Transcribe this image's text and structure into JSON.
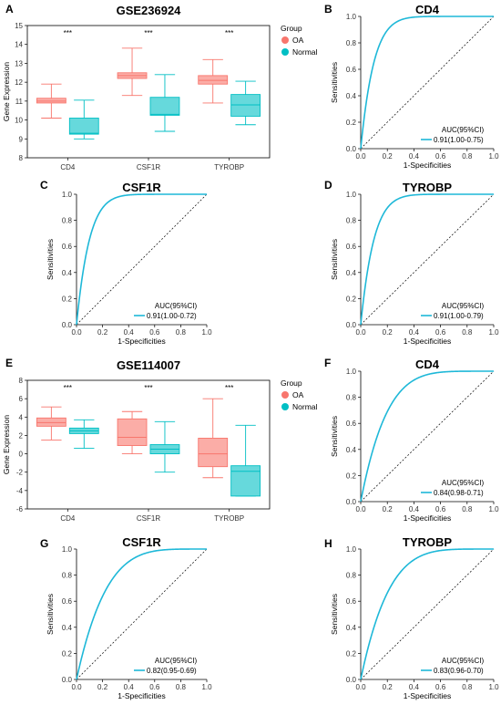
{
  "chart_data": [
    {
      "panel": "A",
      "type": "box",
      "title": "GSE236924",
      "ylabel": "Gene Expression",
      "ylim": [
        8,
        15
      ],
      "yticks": [
        8,
        9,
        10,
        11,
        12,
        13,
        14,
        15
      ],
      "categories": [
        "CD4",
        "CSF1R",
        "TYROBP"
      ],
      "significance": [
        "***",
        "***",
        "***"
      ],
      "legend": {
        "title": "Group",
        "entries": [
          "OA",
          "Normal"
        ],
        "placement": "right"
      },
      "series": [
        {
          "name": "OA",
          "color": "#F8766D",
          "boxes": [
            {
              "min": 10.1,
              "q1": 10.9,
              "median": 11.0,
              "q3": 11.15,
              "max": 11.9
            },
            {
              "min": 11.3,
              "q1": 12.2,
              "median": 12.35,
              "q3": 12.5,
              "max": 13.8
            },
            {
              "min": 10.9,
              "q1": 11.9,
              "median": 12.1,
              "q3": 12.35,
              "max": 13.2
            }
          ]
        },
        {
          "name": "Normal",
          "color": "#00BFC4",
          "boxes": [
            {
              "min": 9.0,
              "q1": 9.25,
              "median": 9.3,
              "q3": 10.1,
              "max": 11.05
            },
            {
              "min": 9.4,
              "q1": 10.25,
              "median": 10.3,
              "q3": 11.2,
              "max": 12.4
            },
            {
              "min": 9.75,
              "q1": 10.2,
              "median": 10.8,
              "q3": 11.35,
              "max": 12.05
            }
          ]
        }
      ]
    },
    {
      "panel": "B",
      "type": "line",
      "title": "CD4",
      "xlabel": "1-Specificities",
      "ylabel": "Sensitivities",
      "xlim": [
        0,
        1
      ],
      "ylim": [
        0,
        1
      ],
      "ticks": [
        "0.0",
        "0.2",
        "0.4",
        "0.6",
        "0.8",
        "1.0"
      ],
      "legend_title": "AUC(95%CI)",
      "legend_label": "0.91(1.00-0.75)",
      "auc": 0.91,
      "color": "#1EB8D8"
    },
    {
      "panel": "C",
      "type": "line",
      "title": "CSF1R",
      "xlabel": "1-Specificities",
      "ylabel": "Sensitivities",
      "xlim": [
        0,
        1
      ],
      "ylim": [
        0,
        1
      ],
      "ticks": [
        "0.0",
        "0.2",
        "0.4",
        "0.6",
        "0.8",
        "1.0"
      ],
      "legend_title": "AUC(95%CI)",
      "legend_label": "0.91(1.00-0.72)",
      "auc": 0.91,
      "color": "#1EB8D8"
    },
    {
      "panel": "D",
      "type": "line",
      "title": "TYROBP",
      "xlabel": "1-Specificities",
      "ylabel": "Sensitivities",
      "xlim": [
        0,
        1
      ],
      "ylim": [
        0,
        1
      ],
      "ticks": [
        "0.0",
        "0.2",
        "0.4",
        "0.6",
        "0.8",
        "1.0"
      ],
      "legend_title": "AUC(95%CI)",
      "legend_label": "0.91(1.00-0.79)",
      "auc": 0.91,
      "color": "#1EB8D8"
    },
    {
      "panel": "E",
      "type": "box",
      "title": "GSE114007",
      "ylabel": "Gene Expression",
      "ylim": [
        -6,
        8
      ],
      "yticks": [
        -6,
        -4,
        -2,
        0,
        2,
        4,
        6,
        8
      ],
      "categories": [
        "CD4",
        "CSF1R",
        "TYROBP"
      ],
      "significance": [
        "***",
        "***",
        "***"
      ],
      "legend": {
        "title": "Group",
        "entries": [
          "OA",
          "Normal"
        ],
        "placement": "right"
      },
      "series": [
        {
          "name": "OA",
          "color": "#F8766D",
          "boxes": [
            {
              "min": 1.5,
              "q1": 3.0,
              "median": 3.4,
              "q3": 3.9,
              "max": 5.1
            },
            {
              "min": 0.0,
              "q1": 0.9,
              "median": 1.8,
              "q3": 3.8,
              "max": 4.6
            },
            {
              "min": -2.6,
              "q1": -1.4,
              "median": 0.0,
              "q3": 1.7,
              "max": 6.0
            }
          ]
        },
        {
          "name": "Normal",
          "color": "#00BFC4",
          "boxes": [
            {
              "min": 0.6,
              "q1": 2.2,
              "median": 2.5,
              "q3": 2.8,
              "max": 3.7
            },
            {
              "min": -2.0,
              "q1": 0.0,
              "median": 0.5,
              "q3": 1.0,
              "max": 3.5
            },
            {
              "min": -4.6,
              "q1": -4.6,
              "median": -1.9,
              "q3": -1.3,
              "max": 3.1
            }
          ]
        }
      ]
    },
    {
      "panel": "F",
      "type": "line",
      "title": "CD4",
      "xlabel": "1-Specificities",
      "ylabel": "Sensitivities",
      "xlim": [
        0,
        1
      ],
      "ylim": [
        0,
        1
      ],
      "ticks": [
        "0.0",
        "0.2",
        "0.4",
        "0.6",
        "0.8",
        "1.0"
      ],
      "legend_title": "AUC(95%CI)",
      "legend_label": "0.84(0.98-0.71)",
      "auc": 0.84,
      "color": "#1EB8D8"
    },
    {
      "panel": "G",
      "type": "line",
      "title": "CSF1R",
      "xlabel": "1-Specificities",
      "ylabel": "Sensitivities",
      "xlim": [
        0,
        1
      ],
      "ylim": [
        0,
        1
      ],
      "ticks": [
        "0.0",
        "0.2",
        "0.4",
        "0.6",
        "0.8",
        "1.0"
      ],
      "legend_title": "AUC(95%CI)",
      "legend_label": "0.82(0.95-0.69)",
      "auc": 0.82,
      "color": "#1EB8D8"
    },
    {
      "panel": "H",
      "type": "line",
      "title": "TYROBP",
      "xlabel": "1-Specificities",
      "ylabel": "Sensitivities",
      "xlim": [
        0,
        1
      ],
      "ylim": [
        0,
        1
      ],
      "ticks": [
        "0.0",
        "0.2",
        "0.4",
        "0.6",
        "0.8",
        "1.0"
      ],
      "legend_title": "AUC(95%CI)",
      "legend_label": "0.83(0.96-0.70)",
      "auc": 0.83,
      "color": "#1EB8D8"
    }
  ]
}
